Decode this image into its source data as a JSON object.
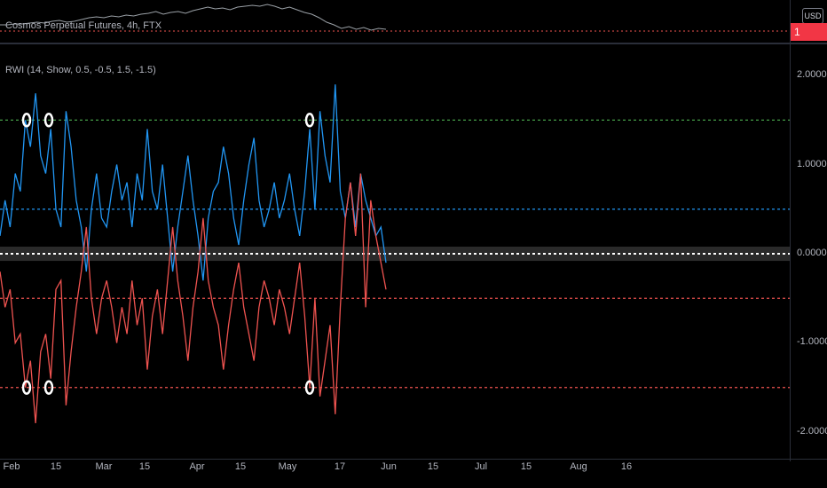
{
  "window": {
    "symbol_legend": "Cosmos Perpetual Futures, 4h, FTX",
    "indicator_legend": "RWI (14, Show, 0.5, -0.5, 1.5, -1.5)",
    "currency_badge": "USD",
    "last_price_label": "1"
  },
  "colors": {
    "background": "#000000",
    "rwi_high": "#2196f3",
    "rwi_low": "#ef5350",
    "upper_threshold": "#4caf50",
    "bull_threshold": "#2196f3",
    "bear_threshold": "#ef5350",
    "zero_line": "#ffffff"
  },
  "y_axis": {
    "ticks": [
      "2.0000",
      "1.0000",
      "0.0000",
      "-1.0000",
      "-2.0000"
    ],
    "range": [
      -2.1,
      2.15
    ]
  },
  "x_axis": {
    "ticks": [
      "Feb",
      "15",
      "Mar",
      "15",
      "Apr",
      "15",
      "May",
      "17",
      "Jun",
      "15",
      "Jul",
      "15",
      "Aug",
      "16"
    ]
  },
  "chart_data": {
    "type": "line",
    "title": "RWI (14, Show, 0.5, -0.5, 1.5, -1.5)",
    "xlabel": "",
    "ylabel": "",
    "ylim": [
      -2.1,
      2.15
    ],
    "x_ticks": [
      "Feb",
      "15",
      "Mar",
      "15",
      "Apr",
      "15",
      "May",
      "17",
      "Jun",
      "15",
      "Jul",
      "15",
      "Aug",
      "16"
    ],
    "thresholds": [
      1.5,
      0.5,
      0.0,
      -0.5,
      -1.5
    ],
    "series": [
      {
        "values": [
          0.2,
          0.6,
          0.3,
          0.9,
          0.7,
          1.5,
          1.2,
          1.8,
          1.1,
          0.9,
          1.4,
          0.5,
          0.3,
          1.6,
          1.2,
          0.6,
          0.3,
          -0.2,
          0.5,
          0.9,
          0.4,
          0.3,
          0.7,
          1.0,
          0.6,
          0.8,
          0.3,
          0.9,
          0.6,
          1.4,
          0.7,
          0.5,
          1.0,
          0.4,
          -0.2,
          0.3,
          0.7,
          1.1,
          0.6,
          0.2,
          -0.3,
          0.4,
          0.7,
          0.8,
          1.2,
          0.9,
          0.4,
          0.1,
          0.6,
          1.0,
          1.3,
          0.6,
          0.3,
          0.5,
          0.8,
          0.4,
          0.6,
          0.9,
          0.5,
          0.2,
          0.7,
          1.4,
          0.5,
          1.6,
          1.1,
          0.8,
          1.9,
          0.7,
          0.4,
          0.8,
          0.3,
          0.9,
          0.6,
          0.4,
          0.2,
          0.3,
          -0.1
        ]
      },
      {
        "values": [
          -0.2,
          -0.6,
          -0.4,
          -1.0,
          -0.9,
          -1.5,
          -1.2,
          -1.9,
          -1.1,
          -0.9,
          -1.4,
          -0.4,
          -0.3,
          -1.7,
          -1.1,
          -0.6,
          -0.2,
          0.3,
          -0.5,
          -0.9,
          -0.5,
          -0.3,
          -0.6,
          -1.0,
          -0.6,
          -0.9,
          -0.3,
          -0.8,
          -0.5,
          -1.3,
          -0.7,
          -0.4,
          -0.9,
          -0.3,
          0.3,
          -0.3,
          -0.7,
          -1.2,
          -0.6,
          -0.2,
          0.4,
          -0.3,
          -0.6,
          -0.8,
          -1.3,
          -0.8,
          -0.4,
          -0.1,
          -0.6,
          -0.9,
          -1.2,
          -0.6,
          -0.3,
          -0.5,
          -0.8,
          -0.4,
          -0.6,
          -0.9,
          -0.5,
          -0.1,
          -0.7,
          -1.5,
          -0.5,
          -1.6,
          -1.2,
          -0.8,
          -1.8,
          -0.6,
          0.4,
          0.8,
          0.2,
          0.9,
          -0.6,
          0.6,
          0.2,
          -0.1,
          -0.4
        ]
      }
    ]
  }
}
